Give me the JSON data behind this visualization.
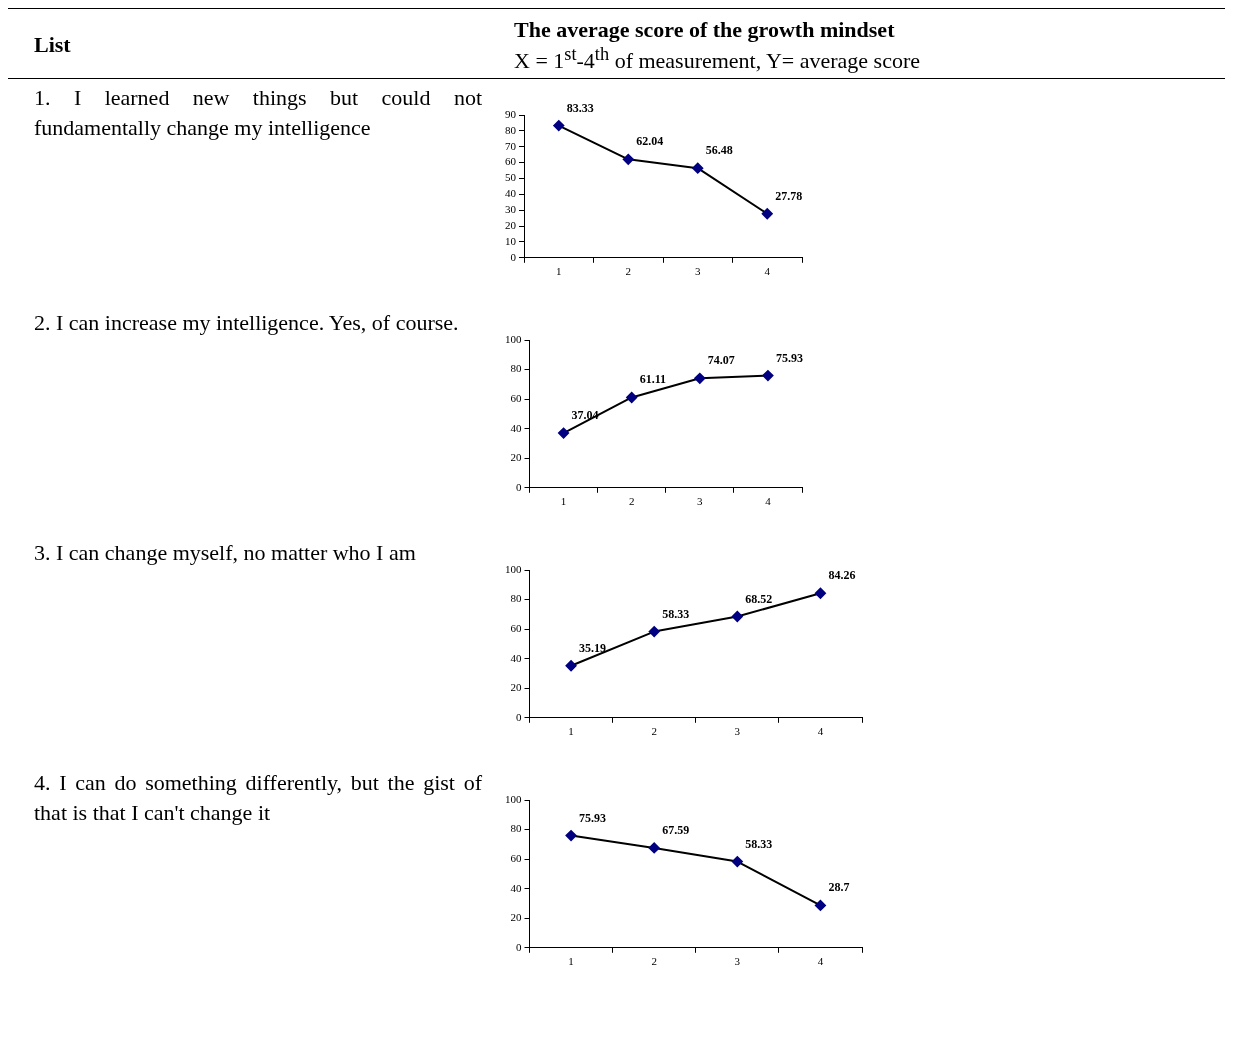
{
  "chart_data": [
    {
      "type": "line",
      "title": "1. I learned new things but could not fundamentally change my intelligence",
      "annotations": [
        "List",
        "The average score of the growth mindset",
        "X = 1$^{st}$-4$^{th}$ of measurement, Y= average score"
      ],
      "categories": [
        "1",
        "2",
        "3",
        "4"
      ],
      "series": [
        {
          "color": "#000080",
          "values": [
            83.33,
            62.04,
            56.48,
            27.78
          ]
        }
      ],
      "ylim": [
        0,
        90
      ],
      "yticks": [
        0,
        10,
        20,
        30,
        40,
        50,
        60,
        70,
        80,
        90
      ],
      "grid": false,
      "legend": false,
      "marker": "diamond",
      "data_labels": true
    },
    {
      "type": "line",
      "title": "2. I can increase my intelligence. Yes, of course.",
      "categories": [
        "1",
        "2",
        "3",
        "4"
      ],
      "series": [
        {
          "color": "#000080",
          "values": [
            37.04,
            61.11,
            74.07,
            75.93
          ]
        }
      ],
      "ylim": [
        0,
        100
      ],
      "yticks": [
        0,
        20,
        40,
        60,
        80,
        100
      ],
      "grid": false,
      "legend": false,
      "marker": "diamond",
      "data_labels": true
    },
    {
      "type": "line",
      "title": "3. I can change myself, no matter who I am",
      "categories": [
        "1",
        "2",
        "3",
        "4"
      ],
      "series": [
        {
          "color": "#000080",
          "values": [
            35.19,
            58.33,
            68.52,
            84.26
          ]
        }
      ],
      "ylim": [
        0,
        100
      ],
      "yticks": [
        0,
        20,
        40,
        60,
        80,
        100
      ],
      "grid": false,
      "legend": false,
      "marker": "diamond",
      "data_labels": true
    },
    {
      "type": "line",
      "title": "4. I can do something differently, but the gist of that is that I can't change it",
      "categories": [
        "1",
        "2",
        "3",
        "4"
      ],
      "series": [
        {
          "color": "#000080",
          "values": [
            75.93,
            67.59,
            58.33,
            28.7
          ]
        }
      ],
      "ylim": [
        0,
        100
      ],
      "yticks": [
        0,
        20,
        40,
        60,
        80,
        100
      ],
      "grid": false,
      "legend": false,
      "marker": "diamond",
      "data_labels": true
    }
  ]
}
